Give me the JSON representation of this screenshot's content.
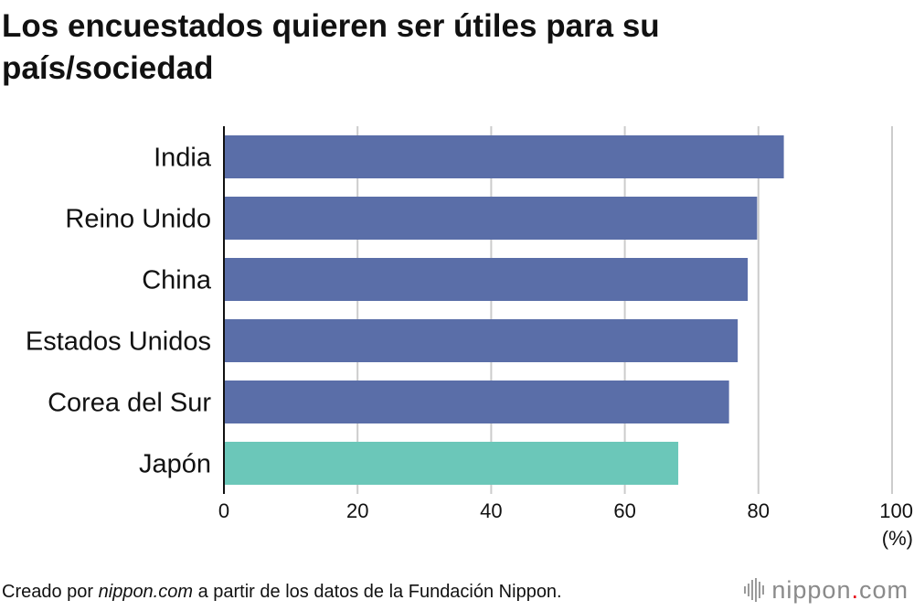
{
  "title": "Los encuestados quieren ser útiles para su país/sociedad",
  "footer": {
    "prefix": "Creado por ",
    "source_site": "nippon.com",
    "suffix": " a partir de los datos de la Fundación Nippon."
  },
  "brand": {
    "name": "nippon",
    "dot": ".",
    "tld": "com"
  },
  "colors": {
    "bar_default": "#5a6ea8",
    "bar_highlight": "#6bc7b9",
    "grid": "#cccccc",
    "axis": "#111111"
  },
  "chart_data": {
    "type": "bar",
    "orientation": "horizontal",
    "title": "Los encuestados quieren ser útiles para su país/sociedad",
    "categories": [
      "India",
      "Reino Unido",
      "China",
      "Estados Unidos",
      "Corea del Sur",
      "Japón"
    ],
    "values": [
      83.8,
      79.8,
      78.4,
      76.9,
      75.6,
      68.0
    ],
    "highlight": "Japón",
    "xlim": [
      0,
      100
    ],
    "xticks": [
      0,
      20,
      40,
      60,
      80,
      100
    ],
    "xlabel": "(%)",
    "ylabel": "",
    "grid": true,
    "legend": "none"
  }
}
